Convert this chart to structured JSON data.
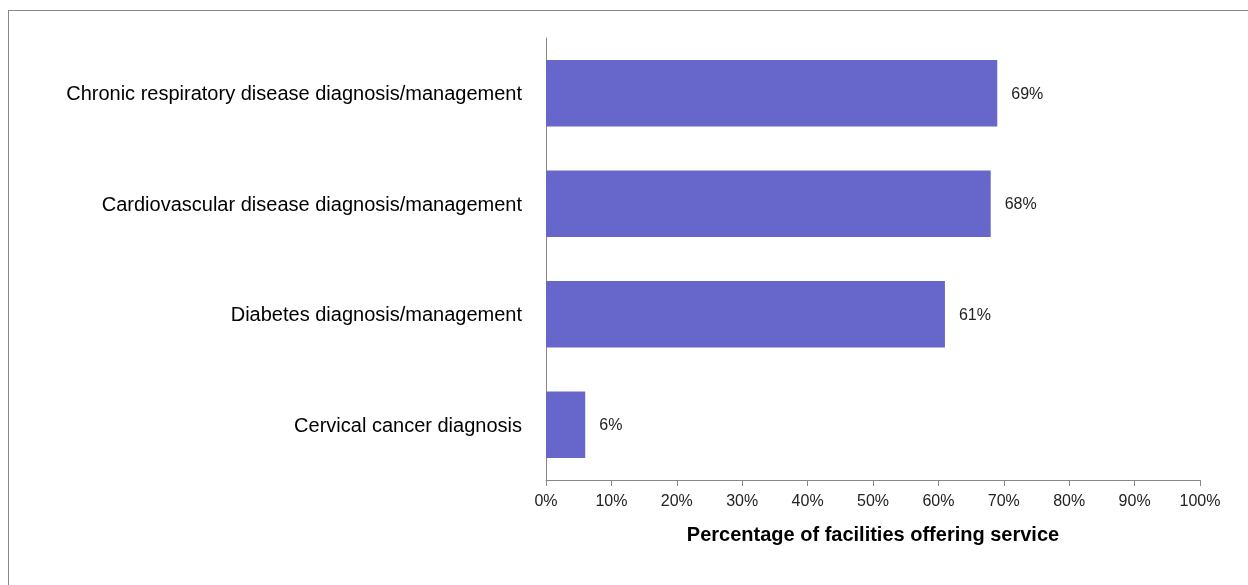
{
  "chart_data": {
    "type": "bar",
    "orientation": "horizontal",
    "xlabel": "Percentage of facilities offering service",
    "categories": [
      "Chronic respiratory disease diagnosis/management",
      "Cardiovascular disease diagnosis/management",
      "Diabetes diagnosis/management",
      "Cervical cancer diagnosis"
    ],
    "values": [
      69,
      68,
      61,
      6
    ],
    "value_labels": [
      "69%",
      "68%",
      "61%",
      "6%"
    ],
    "color": "#6767cb",
    "xlim": [
      0,
      100
    ],
    "xticks": [
      {
        "value": 0,
        "label": "0%"
      },
      {
        "value": 10,
        "label": "10%"
      },
      {
        "value": 20,
        "label": "20%"
      },
      {
        "value": 30,
        "label": "30%"
      },
      {
        "value": 40,
        "label": "40%"
      },
      {
        "value": 50,
        "label": "50%"
      },
      {
        "value": 60,
        "label": "60%"
      },
      {
        "value": 70,
        "label": "70%"
      },
      {
        "value": 80,
        "label": "80%"
      },
      {
        "value": 90,
        "label": "90%"
      },
      {
        "value": 100,
        "label": "100%"
      }
    ]
  }
}
